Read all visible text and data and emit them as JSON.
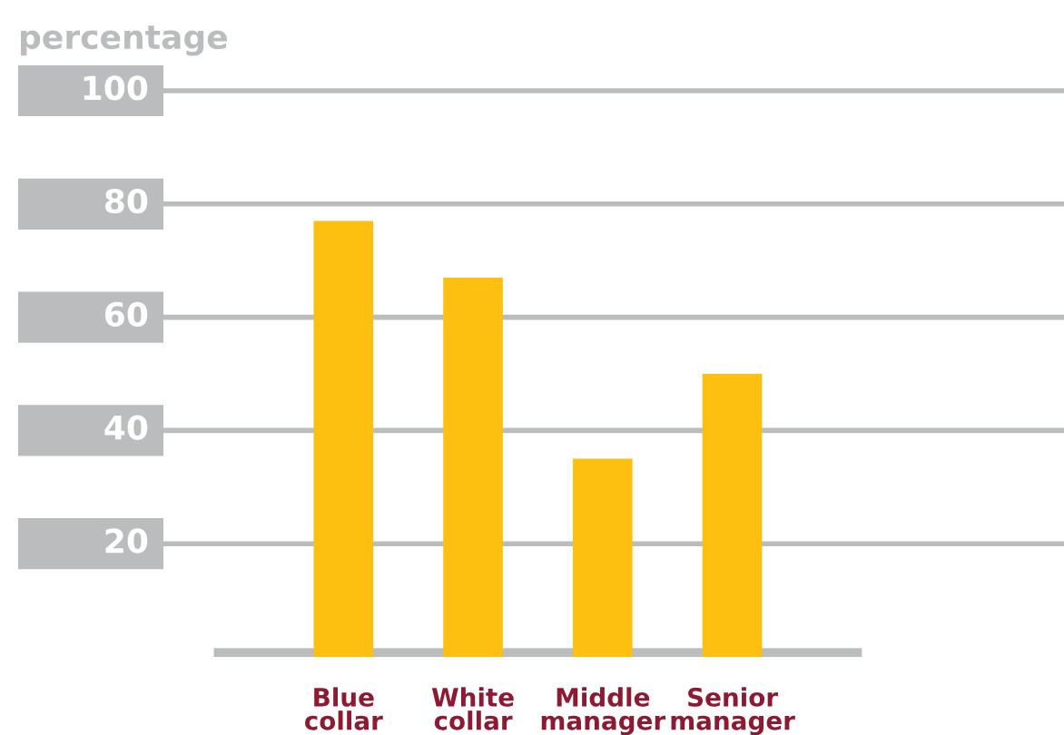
{
  "chart_data": {
    "type": "bar",
    "ylabel": "percentage",
    "categories": [
      "Blue\ncollar",
      "White\ncollar",
      "Middle\nmanager",
      "Senior\nmanager"
    ],
    "values": [
      77,
      67,
      35,
      50
    ],
    "color": "#fdc010",
    "ylim": [
      0,
      100
    ],
    "yticks": [
      20,
      40,
      60,
      80,
      100
    ],
    "grid": "y"
  }
}
